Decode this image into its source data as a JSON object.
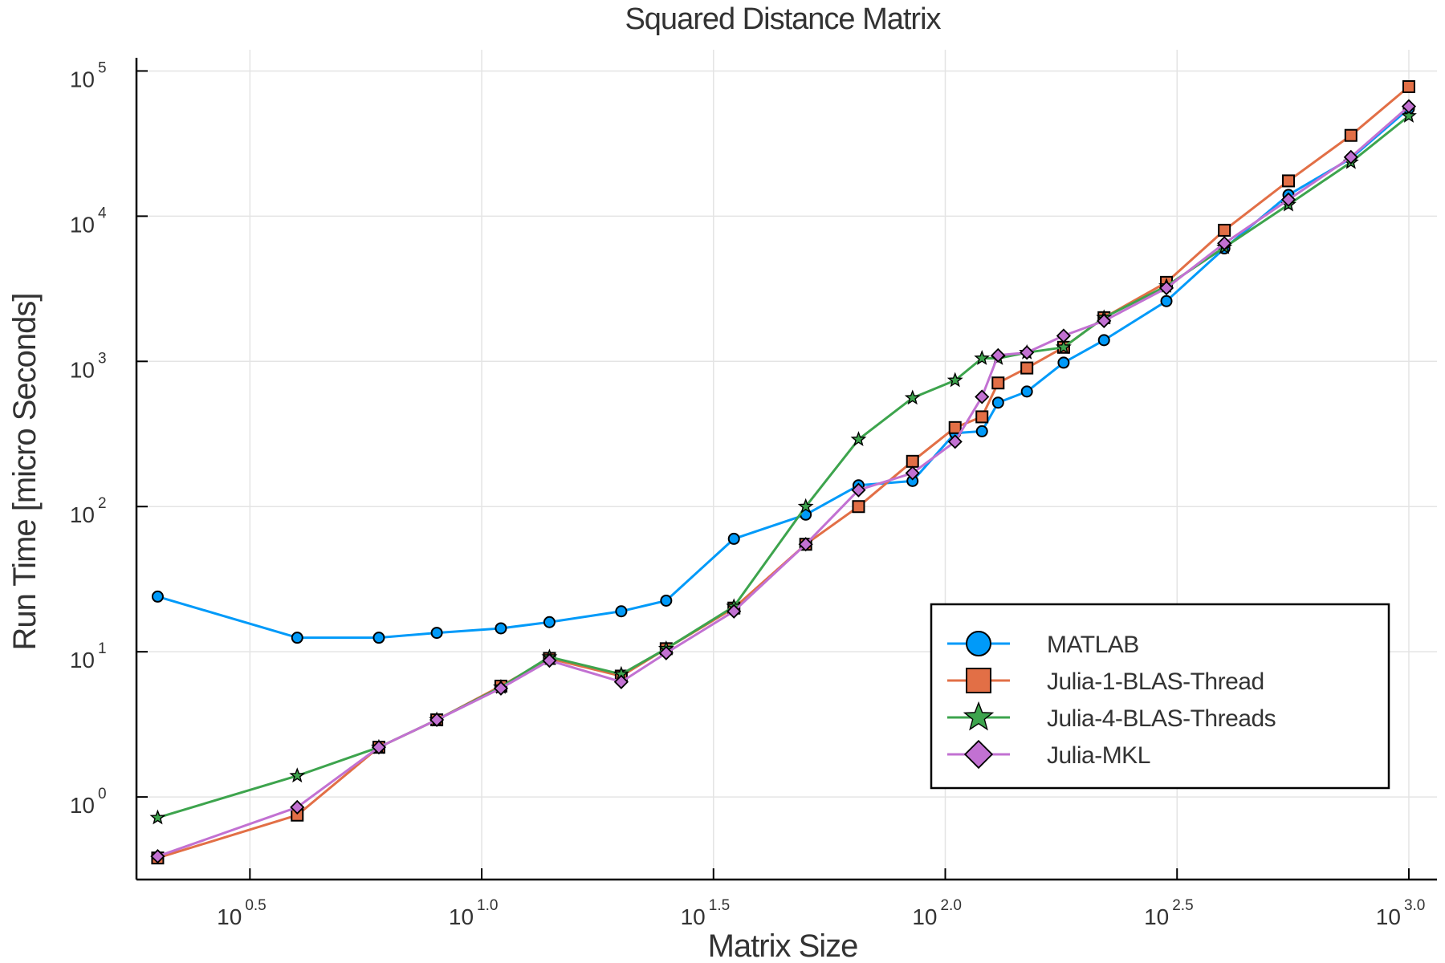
{
  "chart_data": {
    "type": "line",
    "title": "Squared Distance Matrix",
    "xlabel": "Matrix Size",
    "ylabel": "Run Time  [micro Seconds]",
    "x_scale": "log10",
    "y_scale": "log10",
    "xlim": [
      1.8,
      1150
    ],
    "ylim": [
      0.27,
      140000
    ],
    "grid": true,
    "legend_position": "bottom-right",
    "x_ticks": [
      {
        "value": 3.1623,
        "base": "10",
        "exp": "0.5"
      },
      {
        "value": 10,
        "base": "10",
        "exp": "1.0"
      },
      {
        "value": 31.623,
        "base": "10",
        "exp": "1.5"
      },
      {
        "value": 100,
        "base": "10",
        "exp": "2.0"
      },
      {
        "value": 316.23,
        "base": "10",
        "exp": "2.5"
      },
      {
        "value": 1000,
        "base": "10",
        "exp": "3.0"
      }
    ],
    "y_ticks": [
      {
        "value": 1,
        "base": "10",
        "exp": "0"
      },
      {
        "value": 10,
        "base": "10",
        "exp": "1"
      },
      {
        "value": 100,
        "base": "10",
        "exp": "2"
      },
      {
        "value": 1000,
        "base": "10",
        "exp": "3"
      },
      {
        "value": 10000,
        "base": "10",
        "exp": "4"
      },
      {
        "value": 100000,
        "base": "10",
        "exp": "5"
      }
    ],
    "x": [
      2,
      4,
      6,
      8,
      11,
      14,
      20,
      25,
      35,
      50,
      65,
      85,
      105,
      120,
      130,
      150,
      180,
      220,
      300,
      400,
      550,
      750,
      1000
    ],
    "series": [
      {
        "name": "MATLAB",
        "color": "#009af9",
        "marker": "circle",
        "x": [
          2,
          4,
          6,
          8,
          11,
          14,
          20,
          25,
          35,
          50,
          65,
          85,
          105,
          120,
          130,
          150,
          180,
          220,
          300,
          400,
          550,
          750,
          1000
        ],
        "values": [
          24,
          12.5,
          12.5,
          13.5,
          14.5,
          16,
          19,
          22.5,
          60,
          88,
          140,
          150,
          320,
          330,
          520,
          620,
          980,
          1400,
          2600,
          6000,
          14000,
          25000,
          55000
        ]
      },
      {
        "name": "Julia-1-BLAS-Thread",
        "color": "#e26f46",
        "marker": "square",
        "x": [
          2,
          4,
          6,
          8,
          11,
          14,
          20,
          25,
          35,
          50,
          65,
          85,
          105,
          120,
          130,
          150,
          180,
          220,
          300,
          400,
          550,
          750,
          1000
        ],
        "values": [
          0.38,
          0.75,
          2.2,
          3.4,
          5.8,
          9,
          6.8,
          10.5,
          20,
          55,
          100,
          205,
          350,
          415,
          710,
          900,
          1250,
          2000,
          3500,
          8000,
          17500,
          36000,
          78000
        ]
      },
      {
        "name": "Julia-4-BLAS-Threads",
        "color": "#3da44d",
        "marker": "star",
        "x": [
          2,
          4,
          6,
          8,
          11,
          14,
          20,
          25,
          35,
          50,
          65,
          85,
          105,
          120,
          130,
          150,
          180,
          220,
          300,
          400,
          550,
          750,
          1000
        ],
        "values": [
          0.72,
          1.4,
          2.2,
          3.4,
          5.7,
          9.2,
          7,
          10.5,
          20.5,
          100,
          290,
          560,
          740,
          1050,
          1050,
          1150,
          1250,
          2000,
          3300,
          6100,
          12000,
          23500,
          49000
        ]
      },
      {
        "name": "Julia-MKL",
        "color": "#c271d2",
        "marker": "diamond",
        "x": [
          2,
          4,
          6,
          8,
          11,
          14,
          20,
          25,
          35,
          50,
          65,
          85,
          105,
          120,
          130,
          150,
          180,
          220,
          300,
          400,
          550,
          750,
          1000
        ],
        "values": [
          0.39,
          0.85,
          2.2,
          3.4,
          5.6,
          8.7,
          6.2,
          9.8,
          19,
          55,
          130,
          170,
          280,
          570,
          1100,
          1150,
          1500,
          1900,
          3200,
          6500,
          13000,
          25500,
          57000
        ]
      }
    ]
  }
}
